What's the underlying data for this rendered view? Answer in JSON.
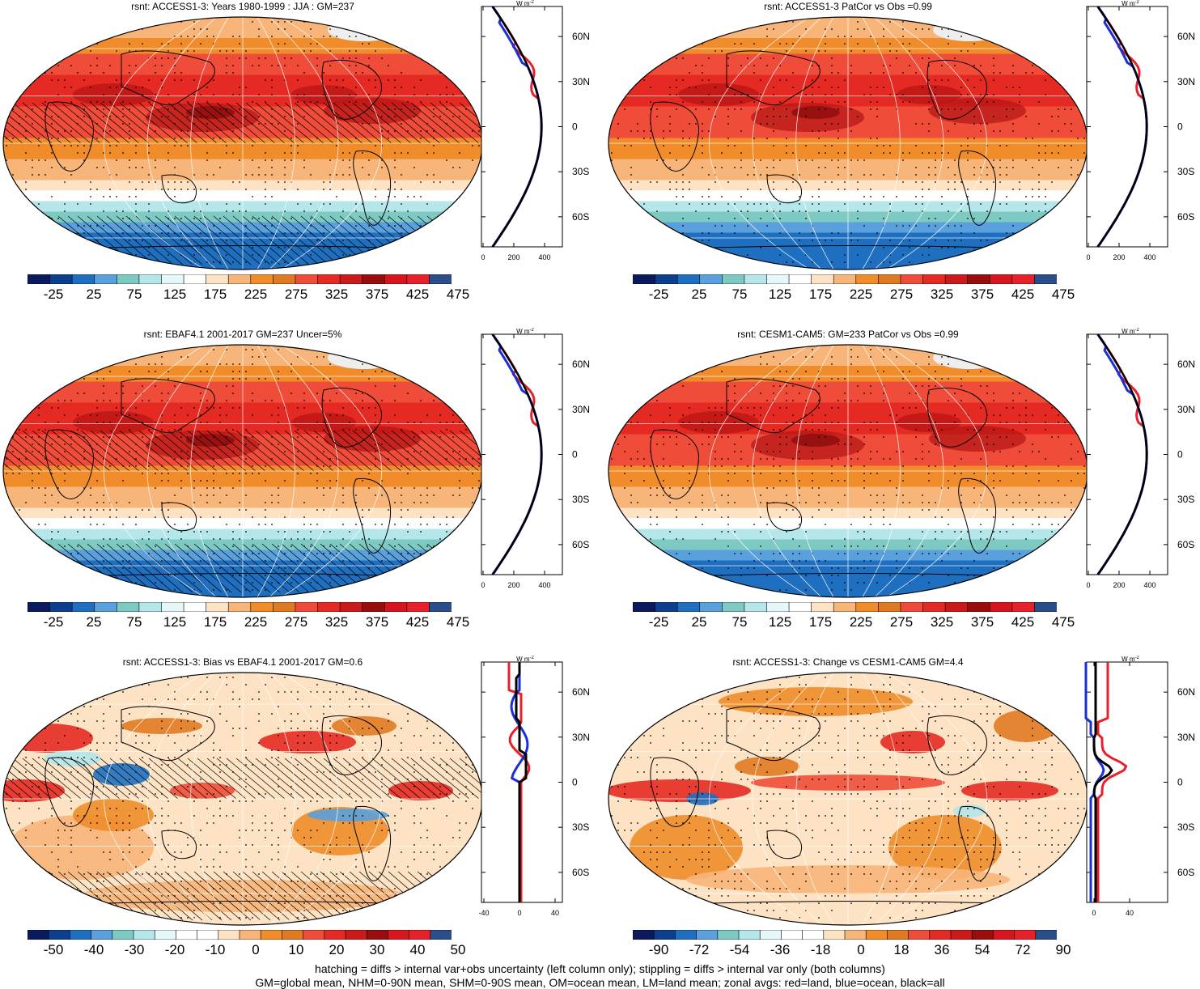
{
  "panels": [
    {
      "title": "rsnt: ACCESS1-3: Years 1980-1999 : JJA : GM=237",
      "colorbar_ticks": [
        "-25",
        "25",
        "75",
        "125",
        "175",
        "225",
        "275",
        "325",
        "375",
        "425",
        "475"
      ],
      "colorbar_colors": [
        "#0a1a5c",
        "#0d3f8f",
        "#1f6fc0",
        "#5aa0dc",
        "#7ecac2",
        "#b5e6ea",
        "#e6f7f9",
        "#ffffff",
        "#fde3c3",
        "#f7b57a",
        "#f08c2a",
        "#e07a22",
        "#ef4c3a",
        "#e42a22",
        "#cc1a1a",
        "#9a0d0d",
        "#d8141c",
        "#e8202a",
        "#2a4e8a"
      ],
      "zonal_xticks": [
        "0",
        "200",
        "400"
      ],
      "zonal_yticks": [
        "60N",
        "30N",
        "0",
        "30S",
        "60S"
      ],
      "unit": "W m-2",
      "kind": "abs",
      "hatch": true
    },
    {
      "title": "rsnt: ACCESS1-3 PatCor vs Obs =0.99",
      "colorbar_ticks": [
        "-25",
        "25",
        "75",
        "125",
        "175",
        "225",
        "275",
        "325",
        "375",
        "425",
        "475"
      ],
      "colorbar_colors": [
        "#0a1a5c",
        "#0d3f8f",
        "#1f6fc0",
        "#5aa0dc",
        "#7ecac2",
        "#b5e6ea",
        "#e6f7f9",
        "#ffffff",
        "#fde3c3",
        "#f7b57a",
        "#f08c2a",
        "#e07a22",
        "#ef4c3a",
        "#e42a22",
        "#cc1a1a",
        "#9a0d0d",
        "#d8141c",
        "#e8202a",
        "#2a4e8a"
      ],
      "zonal_xticks": [
        "0",
        "200",
        "400"
      ],
      "zonal_yticks": [
        "60N",
        "30N",
        "0",
        "30S",
        "60S"
      ],
      "unit": "W m-2",
      "kind": "abs",
      "hatch": false
    },
    {
      "title": "rsnt: EBAF4.1 2001-2017 GM=237 Uncer=5%",
      "colorbar_ticks": [
        "-25",
        "25",
        "75",
        "125",
        "175",
        "225",
        "275",
        "325",
        "375",
        "425",
        "475"
      ],
      "colorbar_colors": [
        "#0a1a5c",
        "#0d3f8f",
        "#1f6fc0",
        "#5aa0dc",
        "#7ecac2",
        "#b5e6ea",
        "#e6f7f9",
        "#ffffff",
        "#fde3c3",
        "#f7b57a",
        "#f08c2a",
        "#e07a22",
        "#ef4c3a",
        "#e42a22",
        "#cc1a1a",
        "#9a0d0d",
        "#d8141c",
        "#e8202a",
        "#2a4e8a"
      ],
      "zonal_xticks": [
        "0",
        "200",
        "400"
      ],
      "zonal_yticks": [
        "60N",
        "30N",
        "0",
        "30S",
        "60S"
      ],
      "unit": "W m-2",
      "kind": "abs",
      "hatch": true
    },
    {
      "title": "rsnt: CESM1-CAM5: GM=233 PatCor vs Obs =0.99",
      "colorbar_ticks": [
        "-25",
        "25",
        "75",
        "125",
        "175",
        "225",
        "275",
        "325",
        "375",
        "425",
        "475"
      ],
      "colorbar_colors": [
        "#0a1a5c",
        "#0d3f8f",
        "#1f6fc0",
        "#5aa0dc",
        "#7ecac2",
        "#b5e6ea",
        "#e6f7f9",
        "#ffffff",
        "#fde3c3",
        "#f7b57a",
        "#f08c2a",
        "#e07a22",
        "#ef4c3a",
        "#e42a22",
        "#cc1a1a",
        "#9a0d0d",
        "#d8141c",
        "#e8202a",
        "#2a4e8a"
      ],
      "zonal_xticks": [
        "0",
        "200",
        "400"
      ],
      "zonal_yticks": [
        "60N",
        "30N",
        "0",
        "30S",
        "60S"
      ],
      "unit": "W m-2",
      "kind": "abs",
      "hatch": false
    },
    {
      "title": "rsnt: ACCESS1-3: Bias vs EBAF4.1 2001-2017 GM=0.6",
      "colorbar_ticks": [
        "-50",
        "-40",
        "-30",
        "-20",
        "-10",
        "0",
        "10",
        "20",
        "30",
        "40",
        "50"
      ],
      "colorbar_colors": [
        "#0a1a5c",
        "#0d3f8f",
        "#1f6fc0",
        "#5aa0dc",
        "#7ecac2",
        "#b5e6ea",
        "#e6f7f9",
        "#ffffff",
        "#ffffff",
        "#fde3c3",
        "#f7b57a",
        "#f08c2a",
        "#e07a22",
        "#ef4c3a",
        "#e42a22",
        "#cc1a1a",
        "#9a0d0d",
        "#d8141c",
        "#e8202a",
        "#2a4e8a"
      ],
      "zonal_xticks": [
        "-40",
        "0",
        "40"
      ],
      "zonal_yticks": [
        "60N",
        "30N",
        "0",
        "30S",
        "60S"
      ],
      "unit": "W m-2",
      "kind": "diff",
      "hatch": true
    },
    {
      "title": "rsnt: ACCESS1-3: Change vs CESM1-CAM5 GM=4.4",
      "colorbar_ticks": [
        "-90",
        "-72",
        "-54",
        "-36",
        "-18",
        "0",
        "18",
        "36",
        "54",
        "72",
        "90"
      ],
      "colorbar_colors": [
        "#0a1a5c",
        "#0d3f8f",
        "#1f6fc0",
        "#5aa0dc",
        "#7ecac2",
        "#b5e6ea",
        "#e6f7f9",
        "#ffffff",
        "#ffffff",
        "#fde3c3",
        "#f7b57a",
        "#f08c2a",
        "#e07a22",
        "#ef4c3a",
        "#e42a22",
        "#cc1a1a",
        "#9a0d0d",
        "#d8141c",
        "#e8202a",
        "#2a4e8a"
      ],
      "zonal_xticks": [
        "0",
        "40"
      ],
      "zonal_yticks": [
        "60N",
        "30N",
        "0",
        "30S",
        "60S"
      ],
      "unit": "W m-2",
      "kind": "change",
      "hatch": false
    }
  ],
  "footer": {
    "line1": "hatching = diffs > internal var+obs uncertainty (left column only); stippling = diffs > internal var only (both columns)",
    "line2": "GM=global mean, NHM=0-90N mean, SHM=0-90S mean, OM=ocean mean, LM=land mean; zonal avgs: red=land, blue=ocean, black=all"
  }
}
